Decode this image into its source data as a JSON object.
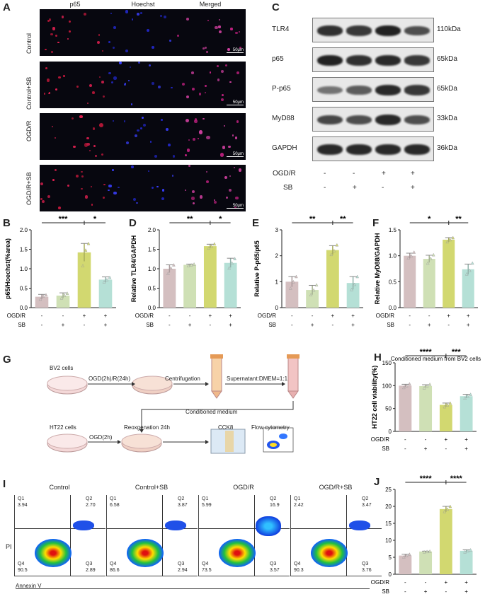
{
  "panel_letters": {
    "A": "A",
    "B": "B",
    "C": "C",
    "D": "D",
    "E": "E",
    "F": "F",
    "G": "G",
    "H": "H",
    "I": "I",
    "J": "J"
  },
  "panelA": {
    "columns": [
      "p65",
      "Hoechst",
      "Merged"
    ],
    "rows": [
      "Control",
      "Control+SB",
      "OGD/R",
      "OGD/R+SB"
    ],
    "scale": "50μm"
  },
  "panelC": {
    "proteins": [
      {
        "name": "TLR4",
        "size": "110kDa"
      },
      {
        "name": "p65",
        "size": "65kDa"
      },
      {
        "name": "P-p65",
        "size": "65kDa"
      },
      {
        "name": "MyD88",
        "size": "33kDa"
      },
      {
        "name": "GAPDH",
        "size": "36kDa"
      }
    ],
    "treat_labels": [
      "OGD/R",
      "SB"
    ],
    "ogdr_signs": [
      "-",
      "-",
      "+",
      "+"
    ],
    "sb_signs": [
      "-",
      "+",
      "-",
      "+"
    ]
  },
  "condition_rows": {
    "ogdr": [
      "-",
      "-",
      "+",
      "+"
    ],
    "sb": [
      "-",
      "+",
      "-",
      "+"
    ],
    "ogdr_label": "OGD/R",
    "sb_label": "SB"
  },
  "colors": [
    "#d4bfc0",
    "#cfe0b5",
    "#d2d870",
    "#b5e0d6"
  ],
  "chart_data": [
    {
      "id": "B",
      "type": "bar",
      "ylabel": "p65/Hoechst(%area)",
      "yticks": [
        "0.0",
        "0.5",
        "1.0",
        "1.5",
        "2.0"
      ],
      "ylim": [
        0,
        2.0
      ],
      "values": [
        0.28,
        0.31,
        1.42,
        0.72
      ],
      "errors": [
        0.06,
        0.07,
        0.23,
        0.07
      ],
      "points": [
        [
          0.22,
          0.3,
          0.33
        ],
        [
          0.25,
          0.32,
          0.37
        ],
        [
          1.08,
          1.48,
          1.65
        ],
        [
          0.66,
          0.72,
          0.78
        ]
      ],
      "sig": [
        "***",
        "*"
      ]
    },
    {
      "id": "D",
      "type": "bar",
      "ylabel": "Relative TLR4/GAPDH",
      "yticks": [
        "0.0",
        "0.5",
        "1.0",
        "1.5",
        "2.0"
      ],
      "ylim": [
        0,
        2.0
      ],
      "values": [
        1.0,
        1.1,
        1.58,
        1.15
      ],
      "errors": [
        0.1,
        0.02,
        0.05,
        0.12
      ],
      "points": [
        [
          0.88,
          1.02,
          1.1
        ],
        [
          1.08,
          1.1,
          1.12
        ],
        [
          1.53,
          1.58,
          1.64
        ],
        [
          1.02,
          1.15,
          1.26
        ]
      ],
      "sig": [
        "**",
        "*"
      ]
    },
    {
      "id": "E",
      "type": "bar",
      "ylabel": "Relative P-p65/p65",
      "yticks": [
        "0",
        "1",
        "2",
        "3"
      ],
      "ylim": [
        0,
        3
      ],
      "values": [
        1.0,
        0.68,
        2.22,
        0.95
      ],
      "errors": [
        0.2,
        0.18,
        0.17,
        0.25
      ],
      "points": [
        [
          0.75,
          1.0,
          1.2
        ],
        [
          0.5,
          0.68,
          0.88
        ],
        [
          2.05,
          2.2,
          2.42
        ],
        [
          0.7,
          0.9,
          1.2
        ]
      ],
      "sig": [
        "**",
        "**"
      ]
    },
    {
      "id": "F",
      "type": "bar",
      "ylabel": "Relative MyD88/GAPDH",
      "yticks": [
        "0.0",
        "0.5",
        "1.0",
        "1.5"
      ],
      "ylim": [
        0,
        1.5
      ],
      "values": [
        1.0,
        0.94,
        1.31,
        0.74
      ],
      "errors": [
        0.05,
        0.07,
        0.04,
        0.1
      ],
      "points": [
        [
          0.96,
          1.0,
          1.07
        ],
        [
          0.86,
          0.95,
          1.02
        ],
        [
          1.27,
          1.31,
          1.35
        ],
        [
          0.65,
          0.72,
          0.86
        ]
      ],
      "sig": [
        "*",
        "**"
      ]
    },
    {
      "id": "H",
      "type": "bar",
      "title": "Conditioned medium from BV2 cells",
      "ylabel": "HT22 cell viability(%)",
      "yticks": [
        "0",
        "50",
        "100",
        "150"
      ],
      "ylim": [
        0,
        150
      ],
      "values": [
        100,
        99,
        58,
        77
      ],
      "errors": [
        3,
        3,
        4,
        4
      ],
      "points": [
        [
          96,
          100,
          104
        ],
        [
          95,
          99,
          103
        ],
        [
          54,
          58,
          62
        ],
        [
          73,
          77,
          81
        ]
      ],
      "sig": [
        "****",
        "***"
      ]
    },
    {
      "id": "J",
      "type": "bar",
      "ylabel": "Apoptosis cells(%)",
      "yticks": [
        "0",
        "5",
        "10",
        "15",
        "20",
        "25"
      ],
      "ylim": [
        0,
        25
      ],
      "values": [
        5.5,
        6.7,
        19.2,
        6.9
      ],
      "errors": [
        0.4,
        0.1,
        0.8,
        0.3
      ],
      "points": [
        [
          5.1,
          5.5,
          5.9
        ],
        [
          6.6,
          6.7,
          6.8
        ],
        [
          18.5,
          19.2,
          20.0
        ],
        [
          6.6,
          6.9,
          7.2
        ]
      ],
      "sig": [
        "****",
        "****"
      ]
    }
  ],
  "panelG": {
    "bv2": "BV2 cells",
    "step1": "OGD(2h)/R(24h)",
    "centrifugation": "Centrifugation",
    "supernatant": "Supernatant:DMEM=1:1",
    "conditioned": "Conditioned medium",
    "ht22": "HT22 cells",
    "ogd2h": "OGD(2h)",
    "reox": "Reoxgenation 24h",
    "cck8": "CCK8",
    "flow": "Flow cytometry"
  },
  "panelI": {
    "yaxis": "PI",
    "xaxis": "Annexin V",
    "plots": [
      {
        "title": "Control",
        "q1": "Q1",
        "q1v": "3.94",
        "q2": "Q2",
        "q2v": "2.70",
        "q3": "Q3",
        "q3v": "2.89",
        "q4": "Q4",
        "q4v": "90.5"
      },
      {
        "title": "Control+SB",
        "q1": "Q1",
        "q1v": "6.58",
        "q2": "Q2",
        "q2v": "3.87",
        "q3": "Q3",
        "q3v": "2.94",
        "q4": "Q4",
        "q4v": "86.6"
      },
      {
        "title": "OGD/R",
        "q1": "Q1",
        "q1v": "5.99",
        "q2": "Q2",
        "q2v": "16.9",
        "q3": "Q3",
        "q3v": "3.57",
        "q4": "Q4",
        "q4v": "73.5"
      },
      {
        "title": "OGD/R+SB",
        "q1": "Q1",
        "q1v": "2.42",
        "q2": "Q2",
        "q2v": "3.47",
        "q3": "Q3",
        "q3v": "3.76",
        "q4": "Q4",
        "q4v": "90.3"
      }
    ]
  }
}
